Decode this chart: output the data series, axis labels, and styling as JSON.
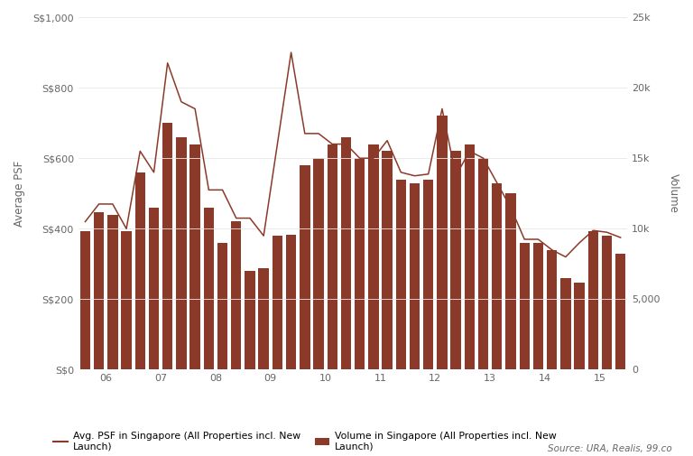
{
  "title": "",
  "ylabel_left": "Average PSF",
  "ylabel_right": "Volume",
  "background_color": "#ffffff",
  "bar_color": "#8B3A2A",
  "line_color": "#8B3A2A",
  "grid_color": "#e8e8e8",
  "source_text": "Source: URA, Realis, 99.co",
  "legend_line": "Avg. PSF in Singapore (All Properties incl. New\nLaunch)",
  "legend_bar": "Volume in Singapore (All Properties incl. New\nLaunch)",
  "x_tick_labels": [
    "06",
    "07",
    "08",
    "09",
    "10",
    "11",
    "12",
    "13",
    "14",
    "15"
  ],
  "avg_psf": [
    420,
    470,
    470,
    400,
    620,
    560,
    870,
    760,
    740,
    510,
    510,
    430,
    430,
    380,
    640,
    900,
    670,
    670,
    640,
    640,
    600,
    600,
    650,
    560,
    550,
    555,
    740,
    550,
    620,
    600,
    530,
    460,
    370,
    370,
    340,
    320,
    360,
    395,
    390,
    375
  ],
  "volume": [
    9800,
    11200,
    11000,
    9800,
    14000,
    11500,
    17500,
    16500,
    16000,
    11500,
    9000,
    10500,
    7000,
    7200,
    9500,
    9600,
    14500,
    15000,
    16000,
    16500,
    15000,
    16000,
    15500,
    13500,
    13200,
    13500,
    18000,
    15500,
    16000,
    15000,
    13200,
    12500,
    9000,
    9000,
    8500,
    6500,
    6200,
    9800,
    9500,
    8200
  ],
  "ylim_left": [
    0,
    1000
  ],
  "ylim_right": [
    0,
    25000
  ],
  "yticks_left": [
    0,
    200,
    400,
    600,
    800,
    1000
  ],
  "ytick_labels_left": [
    "S$0",
    "S$200",
    "S$400",
    "S$600",
    "S$800",
    "S$1,000"
  ],
  "yticks_right": [
    0,
    5000,
    10000,
    15000,
    20000,
    25000
  ],
  "ytick_labels_right": [
    "0",
    "5,000",
    "10k",
    "15k",
    "20k",
    "25k"
  ]
}
